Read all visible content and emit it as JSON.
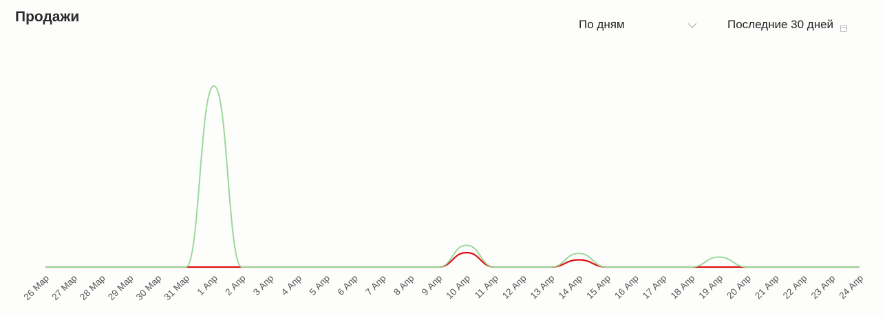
{
  "header": {
    "title": "Продажи",
    "period_select": {
      "value": "По дням",
      "icon": "chevron-down-icon"
    },
    "range_picker": {
      "value": "Последние 30 дней",
      "icon": "calendar-icon"
    }
  },
  "colors": {
    "series_total": "#9bd89b",
    "series_red": "#e01010",
    "axis_text": "#555555"
  },
  "chart_data": {
    "type": "line",
    "categories": [
      "26 Мар",
      "27 Мар",
      "28 Мар",
      "29 Мар",
      "30 Мар",
      "31 Мар",
      "1 Апр",
      "2 Апр",
      "3 Апр",
      "4 Апр",
      "5 Апр",
      "6 Апр",
      "7 Апр",
      "8 Апр",
      "9 Апр",
      "10 Апр",
      "11 Апр",
      "12 Апр",
      "13 Апр",
      "14 Апр",
      "15 Апр",
      "16 Апр",
      "17 Апр",
      "18 Апр",
      "19 Апр",
      "20 Апр",
      "21 Апр",
      "22 Апр",
      "23 Апр",
      "24 Апр"
    ],
    "series": [
      {
        "color": "#9bd89b",
        "values": [
          0,
          0,
          0,
          0,
          0,
          0,
          100,
          0,
          0,
          0,
          0,
          0,
          0,
          0,
          0,
          12,
          0,
          0,
          0,
          7.5,
          0,
          0,
          0,
          0,
          5.5,
          0,
          0,
          0,
          0,
          0
        ]
      },
      {
        "color": "#e01010",
        "values": [
          0,
          0,
          0,
          0,
          0,
          0,
          0,
          0,
          0,
          0,
          0,
          0,
          0,
          0,
          0,
          8,
          0,
          0,
          0,
          4,
          0,
          0,
          0,
          0,
          0,
          0,
          0,
          0,
          0,
          0
        ]
      }
    ],
    "ylim": [
      0,
      100
    ],
    "grid": false,
    "legend": "none"
  }
}
